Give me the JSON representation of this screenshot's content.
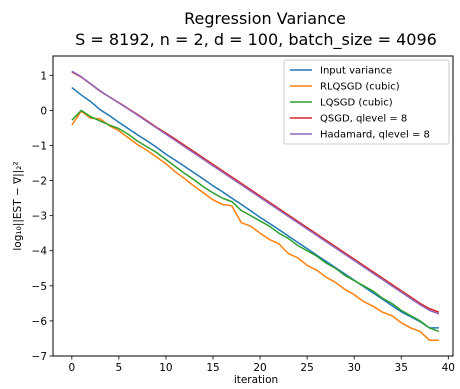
{
  "chart_data": {
    "type": "line",
    "title": "Regression Variance",
    "subtitle": "S = 8192, n = 2, d = 100, batch_size = 4096",
    "xlabel": "iteration",
    "ylabel": "log₁₀||EST − ∇||₂²",
    "xlim": [
      -2,
      40.5
    ],
    "ylim": [
      -7,
      1.55
    ],
    "xticks": [
      0,
      5,
      10,
      15,
      20,
      25,
      30,
      35,
      40
    ],
    "xtick_labels": [
      "0",
      "5",
      "10",
      "15",
      "20",
      "25",
      "30",
      "35",
      "40"
    ],
    "yticks": [
      1,
      0,
      -1,
      -2,
      -3,
      -4,
      -5,
      -6,
      -7
    ],
    "ytick_labels": [
      "1",
      "0",
      "−1",
      "−2",
      "−3",
      "−4",
      "−5",
      "−6",
      "−7"
    ],
    "grid": false,
    "legend_position": "top-right",
    "x": [
      0,
      1,
      2,
      3,
      4,
      5,
      6,
      7,
      8,
      9,
      10,
      11,
      12,
      13,
      14,
      15,
      16,
      17,
      18,
      19,
      20,
      21,
      22,
      23,
      24,
      25,
      26,
      27,
      28,
      29,
      30,
      31,
      32,
      33,
      34,
      35,
      36,
      37,
      38,
      39
    ],
    "series": [
      {
        "name": "Input variance",
        "color": "#1f77b4",
        "values": [
          0.65,
          0.44,
          0.25,
          0.02,
          -0.15,
          -0.34,
          -0.52,
          -0.7,
          -0.87,
          -1.05,
          -1.25,
          -1.42,
          -1.6,
          -1.78,
          -1.96,
          -2.15,
          -2.32,
          -2.5,
          -2.68,
          -2.86,
          -3.05,
          -3.22,
          -3.4,
          -3.58,
          -3.76,
          -3.94,
          -4.12,
          -4.3,
          -4.48,
          -4.66,
          -4.84,
          -5.02,
          -5.2,
          -5.38,
          -5.56,
          -5.74,
          -5.88,
          -6.02,
          -6.2,
          -6.2
        ]
      },
      {
        "name": "RLQSGD (cubic)",
        "color": "#ff7f0e",
        "values": [
          -0.42,
          -0.02,
          -0.22,
          -0.24,
          -0.44,
          -0.58,
          -0.78,
          -0.98,
          -1.14,
          -1.33,
          -1.52,
          -1.75,
          -1.95,
          -2.16,
          -2.35,
          -2.55,
          -2.68,
          -2.72,
          -3.2,
          -3.3,
          -3.5,
          -3.68,
          -3.8,
          -4.08,
          -4.2,
          -4.42,
          -4.55,
          -4.75,
          -4.9,
          -5.1,
          -5.25,
          -5.45,
          -5.58,
          -5.75,
          -5.85,
          -6.05,
          -6.2,
          -6.3,
          -6.55,
          -6.55
        ]
      },
      {
        "name": "LQSGD (cubic)",
        "color": "#2ca02c",
        "values": [
          -0.28,
          0.0,
          -0.18,
          -0.3,
          -0.42,
          -0.52,
          -0.68,
          -0.88,
          -1.04,
          -1.2,
          -1.4,
          -1.6,
          -1.8,
          -1.98,
          -2.18,
          -2.35,
          -2.5,
          -2.6,
          -2.85,
          -3.0,
          -3.15,
          -3.3,
          -3.5,
          -3.65,
          -3.85,
          -4.0,
          -4.15,
          -4.35,
          -4.5,
          -4.7,
          -4.85,
          -5.0,
          -5.15,
          -5.35,
          -5.5,
          -5.7,
          -5.85,
          -6.0,
          -6.2,
          -6.3
        ]
      },
      {
        "name": "QSGD, qlevel = 8",
        "color": "#d62728",
        "values": [
          1.1,
          0.95,
          0.75,
          0.55,
          0.38,
          0.22,
          0.05,
          -0.12,
          -0.3,
          -0.48,
          -0.65,
          -0.82,
          -1.0,
          -1.18,
          -1.36,
          -1.54,
          -1.72,
          -1.9,
          -2.08,
          -2.26,
          -2.44,
          -2.62,
          -2.8,
          -2.98,
          -3.16,
          -3.34,
          -3.52,
          -3.7,
          -3.88,
          -4.06,
          -4.24,
          -4.42,
          -4.6,
          -4.78,
          -4.96,
          -5.14,
          -5.32,
          -5.5,
          -5.65,
          -5.75
        ]
      },
      {
        "name": "Hadamard, qlevel = 8",
        "color": "#9467bd",
        "values": [
          1.12,
          0.96,
          0.76,
          0.56,
          0.38,
          0.21,
          0.04,
          -0.14,
          -0.32,
          -0.5,
          -0.68,
          -0.86,
          -1.04,
          -1.22,
          -1.4,
          -1.58,
          -1.76,
          -1.94,
          -2.12,
          -2.3,
          -2.48,
          -2.66,
          -2.84,
          -3.02,
          -3.2,
          -3.38,
          -3.56,
          -3.74,
          -3.92,
          -4.1,
          -4.28,
          -4.46,
          -4.64,
          -4.82,
          -5.0,
          -5.18,
          -5.36,
          -5.54,
          -5.7,
          -5.8
        ]
      }
    ]
  }
}
